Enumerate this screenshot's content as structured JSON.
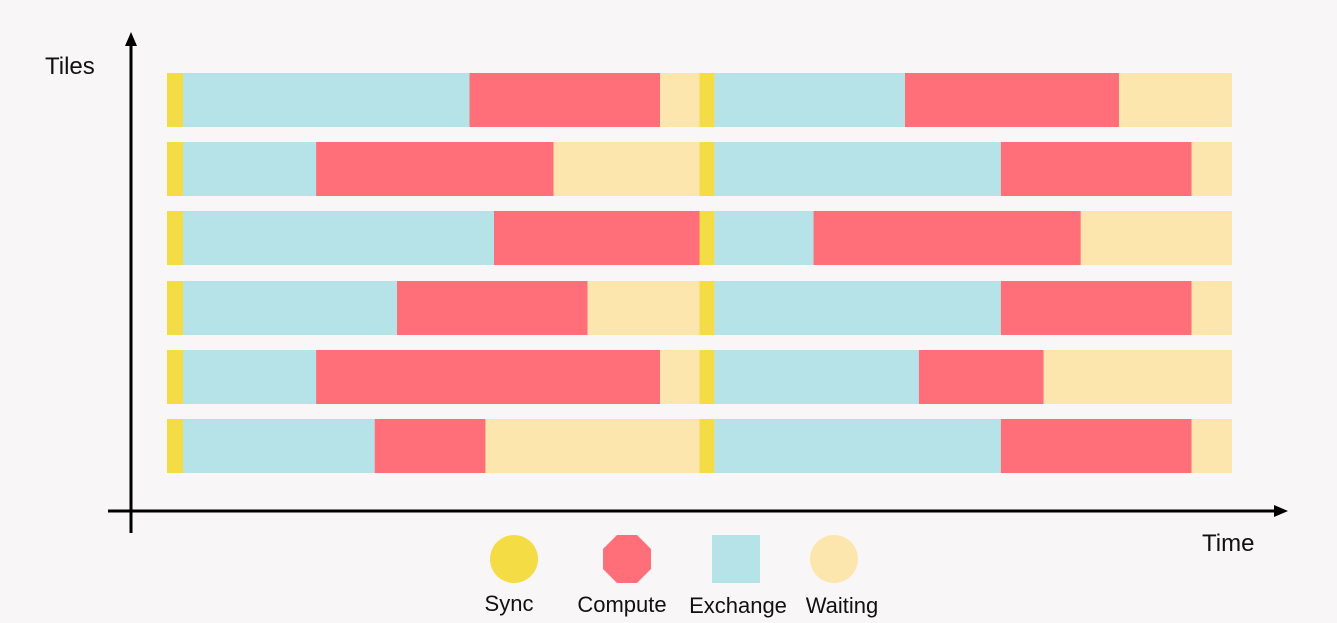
{
  "chart_data": {
    "type": "gantt",
    "ylabel": "Tiles",
    "xlabel": "Time",
    "x_ticks": "none",
    "y_ticks": "none",
    "grid": false,
    "legend_position": "bottom-center",
    "phases": [
      {
        "name": "Sync",
        "color": "#f4dc45",
        "shape": "circle"
      },
      {
        "name": "Compute",
        "color": "#ff6f79",
        "shape": "octagon"
      },
      {
        "name": "Exchange",
        "color": "#b5e3e8",
        "shape": "square"
      },
      {
        "name": "Waiting",
        "color": "#fce6ad",
        "shape": "circle"
      }
    ],
    "x_range": [
      0,
      100
    ],
    "rows": [
      [
        [
          "Sync",
          0,
          1.5
        ],
        [
          "Exchange",
          1.5,
          28.4
        ],
        [
          "Compute",
          28.4,
          46.3
        ],
        [
          "Waiting",
          46.3,
          50
        ],
        [
          "Sync",
          50,
          51.4
        ],
        [
          "Exchange",
          51.4,
          69.3
        ],
        [
          "Compute",
          69.3,
          89.4
        ],
        [
          "Waiting",
          89.4,
          100
        ]
      ],
      [
        [
          "Sync",
          0,
          1.5
        ],
        [
          "Exchange",
          1.5,
          14
        ],
        [
          "Compute",
          14,
          36.3
        ],
        [
          "Waiting",
          36.3,
          50
        ],
        [
          "Sync",
          50,
          51.4
        ],
        [
          "Exchange",
          51.4,
          78.3
        ],
        [
          "Compute",
          78.3,
          96.2
        ],
        [
          "Waiting",
          96.2,
          100
        ]
      ],
      [
        [
          "Sync",
          0,
          1.5
        ],
        [
          "Exchange",
          1.5,
          30.7
        ],
        [
          "Compute",
          30.7,
          50
        ],
        [
          "Sync",
          50,
          51.4
        ],
        [
          "Exchange",
          51.4,
          60.7
        ],
        [
          "Compute",
          60.7,
          85.8
        ],
        [
          "Waiting",
          85.8,
          100
        ]
      ],
      [
        [
          "Sync",
          0,
          1.5
        ],
        [
          "Exchange",
          1.5,
          21.6
        ],
        [
          "Compute",
          21.6,
          39.5
        ],
        [
          "Waiting",
          39.5,
          50
        ],
        [
          "Sync",
          50,
          51.4
        ],
        [
          "Exchange",
          51.4,
          78.3
        ],
        [
          "Compute",
          78.3,
          96.2
        ],
        [
          "Waiting",
          96.2,
          100
        ]
      ],
      [
        [
          "Sync",
          0,
          1.5
        ],
        [
          "Exchange",
          1.5,
          14
        ],
        [
          "Compute",
          14,
          46.3
        ],
        [
          "Waiting",
          46.3,
          50
        ],
        [
          "Sync",
          50,
          51.4
        ],
        [
          "Exchange",
          51.4,
          70.6
        ],
        [
          "Compute",
          70.6,
          82.3
        ],
        [
          "Waiting",
          82.3,
          100
        ]
      ],
      [
        [
          "Sync",
          0,
          1.5
        ],
        [
          "Exchange",
          1.5,
          19.5
        ],
        [
          "Compute",
          19.5,
          29.9
        ],
        [
          "Waiting",
          29.9,
          50
        ],
        [
          "Sync",
          50,
          51.4
        ],
        [
          "Exchange",
          51.4,
          78.3
        ],
        [
          "Compute",
          78.3,
          96.2
        ],
        [
          "Waiting",
          96.2,
          100
        ]
      ]
    ]
  }
}
